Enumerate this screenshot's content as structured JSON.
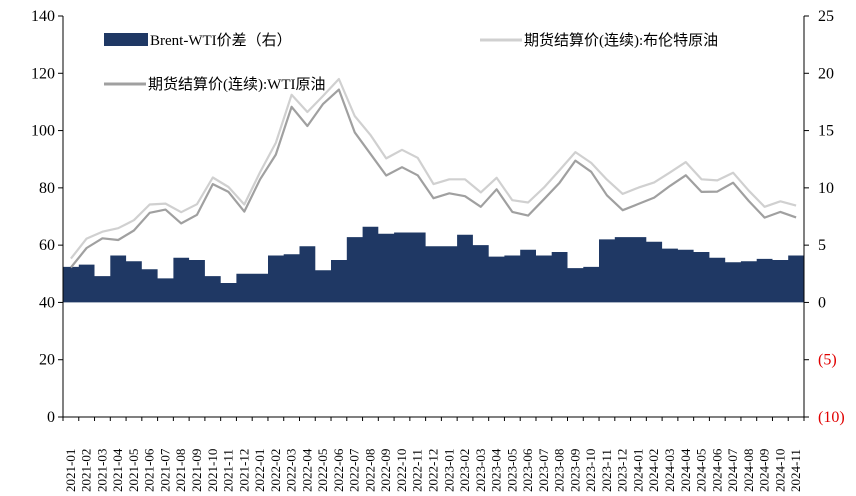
{
  "chart_data": {
    "type": "line",
    "left_axis": {
      "ylim": [
        0,
        140
      ],
      "ticks": [
        "0",
        "20",
        "40",
        "60",
        "80",
        "100",
        "120",
        "140"
      ]
    },
    "right_axis": {
      "ylim": [
        -10,
        25
      ],
      "ticks": [
        "(10)",
        "(5)",
        "0",
        "5",
        "10",
        "15",
        "20",
        "25"
      ],
      "negative_color": "#e00000"
    },
    "categories": [
      "2021-01",
      "2021-02",
      "2021-03",
      "2021-04",
      "2021-05",
      "2021-06",
      "2021-07",
      "2021-08",
      "2021-09",
      "2021-10",
      "2021-11",
      "2021-12",
      "2022-01",
      "2022-02",
      "2022-03",
      "2022-04",
      "2022-05",
      "2022-06",
      "2022-07",
      "2022-08",
      "2022-09",
      "2022-10",
      "2022-11",
      "2022-12",
      "2023-01",
      "2023-02",
      "2023-03",
      "2023-04",
      "2023-05",
      "2023-06",
      "2023-07",
      "2023-08",
      "2023-09",
      "2023-10",
      "2023-11",
      "2023-12",
      "2024-01",
      "2024-02",
      "2024-03",
      "2024-04",
      "2024-05",
      "2024-06",
      "2024-07",
      "2024-08",
      "2024-09",
      "2024-10",
      "2024-11"
    ],
    "legend": [
      "Brent-WTI价差（右）",
      "期货结算价(连续):布伦特原油",
      "期货结算价(连续):WTI原油"
    ],
    "series": [
      {
        "name": "期货结算价(连续):布伦特原油",
        "axis": "left",
        "color": "#d0d0d0",
        "values": [
          55.3,
          62.3,
          64.7,
          65.9,
          68.7,
          74.2,
          74.5,
          71.5,
          74.3,
          83.6,
          80.3,
          74.2,
          85.5,
          95.7,
          112.5,
          106.5,
          112.1,
          118.0,
          105.1,
          98.5,
          90.3,
          93.3,
          90.5,
          81.3,
          83.0,
          83.0,
          78.4,
          83.5,
          75.7,
          74.9,
          80.1,
          86.2,
          92.5,
          88.7,
          82.9,
          77.9,
          80.1,
          81.9,
          85.4,
          89.0,
          83.0,
          82.6,
          85.3,
          79.0,
          73.4,
          75.3,
          73.8
        ]
      },
      {
        "name": "期货结算价(连续):WTI原油",
        "axis": "left",
        "color": "#a0a0a0",
        "values": [
          52.2,
          59.0,
          62.4,
          61.8,
          65.1,
          71.3,
          72.4,
          67.6,
          70.6,
          81.3,
          78.6,
          71.7,
          83.0,
          91.6,
          108.3,
          101.6,
          109.3,
          114.3,
          99.4,
          91.9,
          84.3,
          87.2,
          84.4,
          76.4,
          78.1,
          77.1,
          73.4,
          79.5,
          71.6,
          70.3,
          76.0,
          81.8,
          89.5,
          85.6,
          77.4,
          72.2,
          74.4,
          76.6,
          80.7,
          84.4,
          78.6,
          78.7,
          81.8,
          75.4,
          69.6,
          71.6,
          69.7
        ]
      },
      {
        "name": "Brent-WTI价差（右）",
        "axis": "right",
        "color": "#1f3864",
        "values": [
          3.1,
          3.3,
          2.3,
          4.1,
          3.6,
          2.9,
          2.1,
          3.9,
          3.7,
          2.3,
          1.7,
          2.5,
          2.5,
          4.1,
          4.2,
          4.9,
          2.8,
          3.7,
          5.7,
          6.6,
          6.0,
          6.1,
          6.1,
          4.9,
          4.9,
          5.9,
          5.0,
          4.0,
          4.1,
          4.6,
          4.1,
          4.4,
          3.0,
          3.1,
          5.5,
          5.7,
          5.7,
          5.3,
          4.7,
          4.6,
          4.4,
          3.9,
          3.5,
          3.6,
          3.8,
          3.7,
          4.1
        ]
      }
    ]
  }
}
